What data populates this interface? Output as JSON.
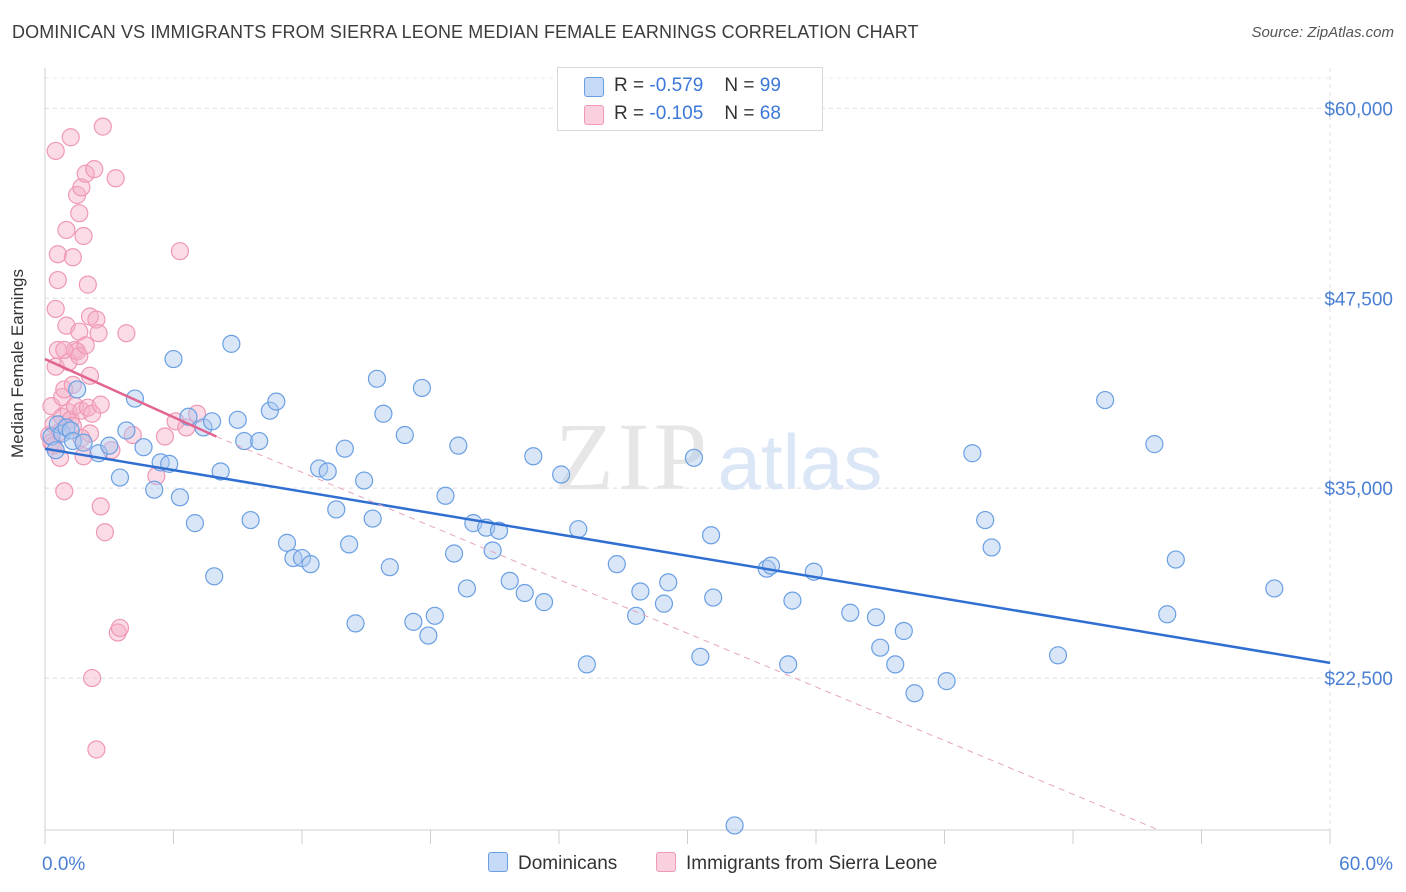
{
  "header": {
    "title": "DOMINICAN VS IMMIGRANTS FROM SIERRA LEONE MEDIAN FEMALE EARNINGS CORRELATION CHART",
    "source": "Source: ZipAtlas.com"
  },
  "legend": {
    "dominicans": {
      "r_label": "R =",
      "r_value": "-0.579",
      "n_label": "N =",
      "n_value": "99"
    },
    "sierra_leone": {
      "r_label": "R =",
      "r_value": "-0.105",
      "n_label": "N =",
      "n_value": "68"
    }
  },
  "bottom_legend": {
    "dominicans": "Dominicans",
    "sierra_leone": "Immigrants from Sierra Leone"
  },
  "watermark": {
    "zip": "ZIP",
    "atlas": "atlas"
  },
  "colors": {
    "blue": "#6a9fe3",
    "blue_line": "#2f6fd1",
    "pink": "#f09ab7",
    "pink_line": "#e06590",
    "axis_text": "#4a7fd4"
  },
  "chart_data": {
    "type": "scatter",
    "title": "DOMINICAN VS IMMIGRANTS FROM SIERRA LEONE MEDIAN FEMALE EARNINGS CORRELATION CHART",
    "xlabel": "",
    "ylabel": "Median Female Earnings",
    "xlim": [
      0,
      60
    ],
    "ylim": [
      12500,
      62000
    ],
    "x_tick_labels": [
      "0.0%",
      "60.0%"
    ],
    "y_ticks": [
      22500,
      35000,
      47500,
      60000
    ],
    "y_tick_labels": [
      "$22,500",
      "$35,000",
      "$47,500",
      "$60,000"
    ],
    "grid": true,
    "legend_position": "top-center",
    "series": [
      {
        "name": "Dominicans",
        "color": "#6a9fe3",
        "points": [
          [
            0.3,
            38400
          ],
          [
            0.5,
            37500
          ],
          [
            0.6,
            39200
          ],
          [
            0.8,
            38600
          ],
          [
            1.0,
            39000
          ],
          [
            1.2,
            38800
          ],
          [
            1.3,
            38100
          ],
          [
            1.5,
            41500
          ],
          [
            1.8,
            38000
          ],
          [
            2.5,
            37300
          ],
          [
            3.0,
            37800
          ],
          [
            3.5,
            35700
          ],
          [
            3.8,
            38800
          ],
          [
            4.2,
            40900
          ],
          [
            4.6,
            37700
          ],
          [
            5.1,
            34900
          ],
          [
            5.4,
            36700
          ],
          [
            5.8,
            36600
          ],
          [
            6.0,
            43500
          ],
          [
            6.3,
            34400
          ],
          [
            6.7,
            39700
          ],
          [
            7.0,
            32700
          ],
          [
            7.4,
            39000
          ],
          [
            7.8,
            39400
          ],
          [
            7.9,
            29200
          ],
          [
            8.2,
            36100
          ],
          [
            8.7,
            44500
          ],
          [
            9.0,
            39500
          ],
          [
            9.3,
            38100
          ],
          [
            9.6,
            32900
          ],
          [
            10.0,
            38100
          ],
          [
            10.5,
            40100
          ],
          [
            10.8,
            40700
          ],
          [
            11.3,
            31400
          ],
          [
            11.6,
            30400
          ],
          [
            12.0,
            30400
          ],
          [
            12.4,
            30000
          ],
          [
            12.8,
            36300
          ],
          [
            13.2,
            36100
          ],
          [
            13.6,
            33600
          ],
          [
            14.0,
            37600
          ],
          [
            14.2,
            31300
          ],
          [
            14.5,
            26100
          ],
          [
            14.9,
            35500
          ],
          [
            15.3,
            33000
          ],
          [
            15.5,
            42200
          ],
          [
            15.8,
            39900
          ],
          [
            16.1,
            29800
          ],
          [
            16.8,
            38500
          ],
          [
            17.2,
            26200
          ],
          [
            17.6,
            41600
          ],
          [
            17.9,
            25300
          ],
          [
            18.2,
            26600
          ],
          [
            18.7,
            34500
          ],
          [
            19.1,
            30700
          ],
          [
            19.3,
            37800
          ],
          [
            19.7,
            28400
          ],
          [
            20.0,
            32700
          ],
          [
            20.6,
            32400
          ],
          [
            20.9,
            30900
          ],
          [
            21.2,
            32200
          ],
          [
            21.7,
            28900
          ],
          [
            22.4,
            28100
          ],
          [
            22.8,
            37100
          ],
          [
            23.3,
            27500
          ],
          [
            24.1,
            35900
          ],
          [
            24.9,
            32300
          ],
          [
            25.3,
            23400
          ],
          [
            26.7,
            30000
          ],
          [
            27.6,
            26600
          ],
          [
            27.8,
            28200
          ],
          [
            28.9,
            27400
          ],
          [
            29.1,
            28800
          ],
          [
            30.3,
            37000
          ],
          [
            30.6,
            23900
          ],
          [
            31.1,
            31900
          ],
          [
            31.2,
            27800
          ],
          [
            32.2,
            12800
          ],
          [
            33.7,
            29700
          ],
          [
            33.9,
            29900
          ],
          [
            34.7,
            23400
          ],
          [
            34.9,
            27600
          ],
          [
            35.9,
            29500
          ],
          [
            37.6,
            26800
          ],
          [
            38.8,
            26500
          ],
          [
            39.0,
            24500
          ],
          [
            39.7,
            23400
          ],
          [
            40.1,
            25600
          ],
          [
            40.6,
            21500
          ],
          [
            42.1,
            22300
          ],
          [
            43.3,
            37300
          ],
          [
            43.9,
            32900
          ],
          [
            44.2,
            31100
          ],
          [
            47.3,
            24000
          ],
          [
            49.5,
            40800
          ],
          [
            51.8,
            37900
          ],
          [
            52.4,
            26700
          ],
          [
            52.8,
            30300
          ],
          [
            57.4,
            28400
          ]
        ]
      },
      {
        "name": "Immigrants from Sierra Leone",
        "color": "#f09ab7",
        "points": [
          [
            0.2,
            38500
          ],
          [
            0.3,
            40400
          ],
          [
            0.3,
            38000
          ],
          [
            0.4,
            37800
          ],
          [
            0.4,
            39200
          ],
          [
            0.5,
            57200
          ],
          [
            0.5,
            46800
          ],
          [
            0.5,
            43000
          ],
          [
            0.6,
            50400
          ],
          [
            0.6,
            48700
          ],
          [
            0.6,
            44100
          ],
          [
            0.7,
            38700
          ],
          [
            0.7,
            37000
          ],
          [
            0.8,
            39700
          ],
          [
            0.8,
            41000
          ],
          [
            0.9,
            34800
          ],
          [
            0.9,
            41500
          ],
          [
            1.0,
            52000
          ],
          [
            1.0,
            45700
          ],
          [
            1.1,
            43300
          ],
          [
            1.1,
            40000
          ],
          [
            1.2,
            58100
          ],
          [
            1.2,
            39500
          ],
          [
            1.3,
            50200
          ],
          [
            1.3,
            41800
          ],
          [
            1.3,
            39100
          ],
          [
            1.4,
            44100
          ],
          [
            1.4,
            40400
          ],
          [
            1.5,
            54300
          ],
          [
            1.5,
            44000
          ],
          [
            1.6,
            53100
          ],
          [
            1.6,
            45300
          ],
          [
            1.6,
            43700
          ],
          [
            1.7,
            54800
          ],
          [
            1.7,
            40100
          ],
          [
            1.8,
            51600
          ],
          [
            1.8,
            37100
          ],
          [
            1.9,
            55700
          ],
          [
            1.9,
            44400
          ],
          [
            2.0,
            48400
          ],
          [
            2.0,
            40300
          ],
          [
            2.1,
            46300
          ],
          [
            2.1,
            42400
          ],
          [
            2.1,
            38600
          ],
          [
            2.2,
            22500
          ],
          [
            2.2,
            39900
          ],
          [
            2.3,
            56000
          ],
          [
            2.4,
            17800
          ],
          [
            2.4,
            46100
          ],
          [
            2.5,
            45200
          ],
          [
            2.6,
            33800
          ],
          [
            2.6,
            40500
          ],
          [
            2.7,
            58800
          ],
          [
            2.8,
            32100
          ],
          [
            3.1,
            37500
          ],
          [
            3.3,
            55400
          ],
          [
            3.4,
            25500
          ],
          [
            3.5,
            25800
          ],
          [
            3.8,
            45200
          ],
          [
            4.1,
            38500
          ],
          [
            5.2,
            35800
          ],
          [
            5.6,
            38400
          ],
          [
            6.1,
            39400
          ],
          [
            6.3,
            50600
          ],
          [
            6.6,
            39000
          ],
          [
            7.1,
            39900
          ],
          [
            1.7,
            38300
          ],
          [
            0.9,
            44100
          ]
        ]
      }
    ],
    "trend_lines": [
      {
        "series": "Dominicans",
        "x": [
          0,
          60
        ],
        "y": [
          37600,
          23500
        ]
      },
      {
        "series": "Immigrants from Sierra Leone",
        "x": [
          0,
          8
        ],
        "y": [
          43500,
          38400
        ],
        "dashed_extension_x": [
          8,
          52
        ],
        "dashed_extension_y": [
          38400,
          12500
        ]
      }
    ]
  }
}
